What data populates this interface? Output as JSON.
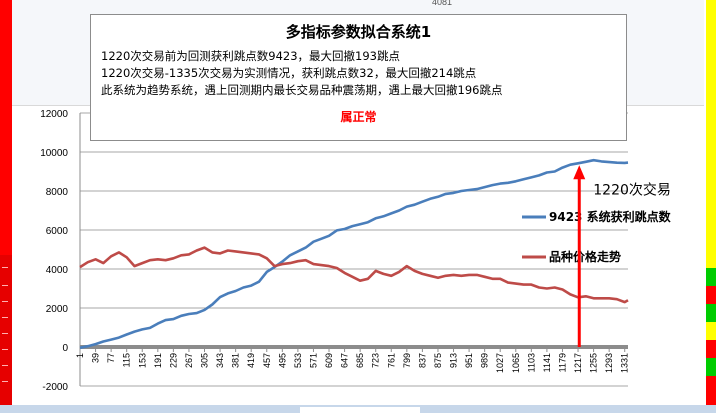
{
  "sheet": {
    "cell_value": "4081"
  },
  "info_box": {
    "title": "多指标参数拟合系统1",
    "line1": "1220次交易前为回测获利跳点数9423，最大回撤193跳点",
    "line2": "1220次交易-1335次交易为实测情况，获利跳点数32，最大回撤214跳点",
    "line3": "此系统为趋势系统，遇上回测期内最长交易品种震荡期，遇上最大回撤196跳点",
    "footer": "属正常"
  },
  "colors": {
    "series_profit": "#4a7ebb",
    "series_price": "#be4b48",
    "arrow": "#ff0000",
    "left_strip": "#ff0000"
  },
  "chart_data": {
    "type": "line",
    "ylim": [
      -2000,
      12000
    ],
    "yticks": [
      -2000,
      0,
      2000,
      4000,
      6000,
      8000,
      10000,
      12000
    ],
    "xlim": [
      1,
      1339
    ],
    "xticks": [
      1,
      39,
      77,
      115,
      153,
      191,
      229,
      267,
      305,
      343,
      381,
      419,
      457,
      495,
      533,
      571,
      609,
      647,
      685,
      723,
      761,
      799,
      837,
      875,
      913,
      951,
      989,
      1027,
      1065,
      1103,
      1141,
      1179,
      1217,
      1255,
      1293,
      1331
    ],
    "grid": true,
    "series": [
      {
        "name": "9423 系统获利跳点数",
        "x": [
          1,
          20,
          39,
          58,
          77,
          96,
          115,
          134,
          153,
          172,
          191,
          210,
          229,
          248,
          267,
          286,
          305,
          324,
          343,
          362,
          381,
          400,
          419,
          438,
          457,
          476,
          495,
          514,
          533,
          552,
          571,
          590,
          609,
          628,
          647,
          666,
          685,
          704,
          723,
          742,
          761,
          780,
          799,
          818,
          837,
          856,
          875,
          894,
          913,
          932,
          951,
          970,
          989,
          1008,
          1027,
          1046,
          1065,
          1084,
          1103,
          1122,
          1141,
          1160,
          1179,
          1198,
          1217,
          1236,
          1255,
          1274,
          1293,
          1312,
          1331,
          1339
        ],
        "values": [
          -40,
          40,
          150,
          280,
          380,
          480,
          640,
          790,
          900,
          980,
          1200,
          1380,
          1430,
          1600,
          1690,
          1740,
          1900,
          2180,
          2560,
          2750,
          2870,
          3050,
          3150,
          3350,
          3850,
          4100,
          4380,
          4700,
          4900,
          5100,
          5400,
          5550,
          5700,
          5980,
          6050,
          6200,
          6300,
          6400,
          6600,
          6700,
          6850,
          7000,
          7200,
          7300,
          7450,
          7600,
          7700,
          7850,
          7900,
          8000,
          8050,
          8100,
          8200,
          8300,
          8380,
          8420,
          8500,
          8600,
          8700,
          8800,
          8950,
          9000,
          9200,
          9350,
          9423,
          9500,
          9580,
          9520,
          9480,
          9450,
          9440,
          9455
        ]
      },
      {
        "name": "品种价格走势",
        "x": [
          1,
          20,
          39,
          58,
          77,
          96,
          115,
          134,
          153,
          172,
          191,
          210,
          229,
          248,
          267,
          286,
          305,
          324,
          343,
          362,
          381,
          400,
          419,
          438,
          457,
          476,
          495,
          514,
          533,
          552,
          571,
          590,
          609,
          628,
          647,
          666,
          685,
          704,
          723,
          742,
          761,
          780,
          799,
          818,
          837,
          856,
          875,
          894,
          913,
          932,
          951,
          970,
          989,
          1008,
          1027,
          1046,
          1065,
          1084,
          1103,
          1122,
          1141,
          1160,
          1179,
          1198,
          1217,
          1236,
          1255,
          1274,
          1293,
          1312,
          1331,
          1339
        ],
        "values": [
          4100,
          4350,
          4500,
          4300,
          4650,
          4850,
          4600,
          4150,
          4300,
          4450,
          4500,
          4450,
          4550,
          4700,
          4750,
          4950,
          5100,
          4850,
          4800,
          4950,
          4900,
          4850,
          4800,
          4750,
          4550,
          4150,
          4250,
          4300,
          4400,
          4450,
          4250,
          4200,
          4150,
          4050,
          3800,
          3600,
          3400,
          3500,
          3900,
          3750,
          3650,
          3850,
          4150,
          3900,
          3750,
          3650,
          3550,
          3650,
          3700,
          3650,
          3700,
          3700,
          3600,
          3500,
          3500,
          3300,
          3250,
          3200,
          3200,
          3050,
          3000,
          3050,
          2950,
          2700,
          2550,
          2600,
          2500,
          2500,
          2500,
          2450,
          2300,
          2400
        ]
      }
    ],
    "annotation": {
      "text": "1220次交易",
      "x": 1220,
      "arrow_from_y": 0,
      "arrow_to_y": 9423
    }
  }
}
